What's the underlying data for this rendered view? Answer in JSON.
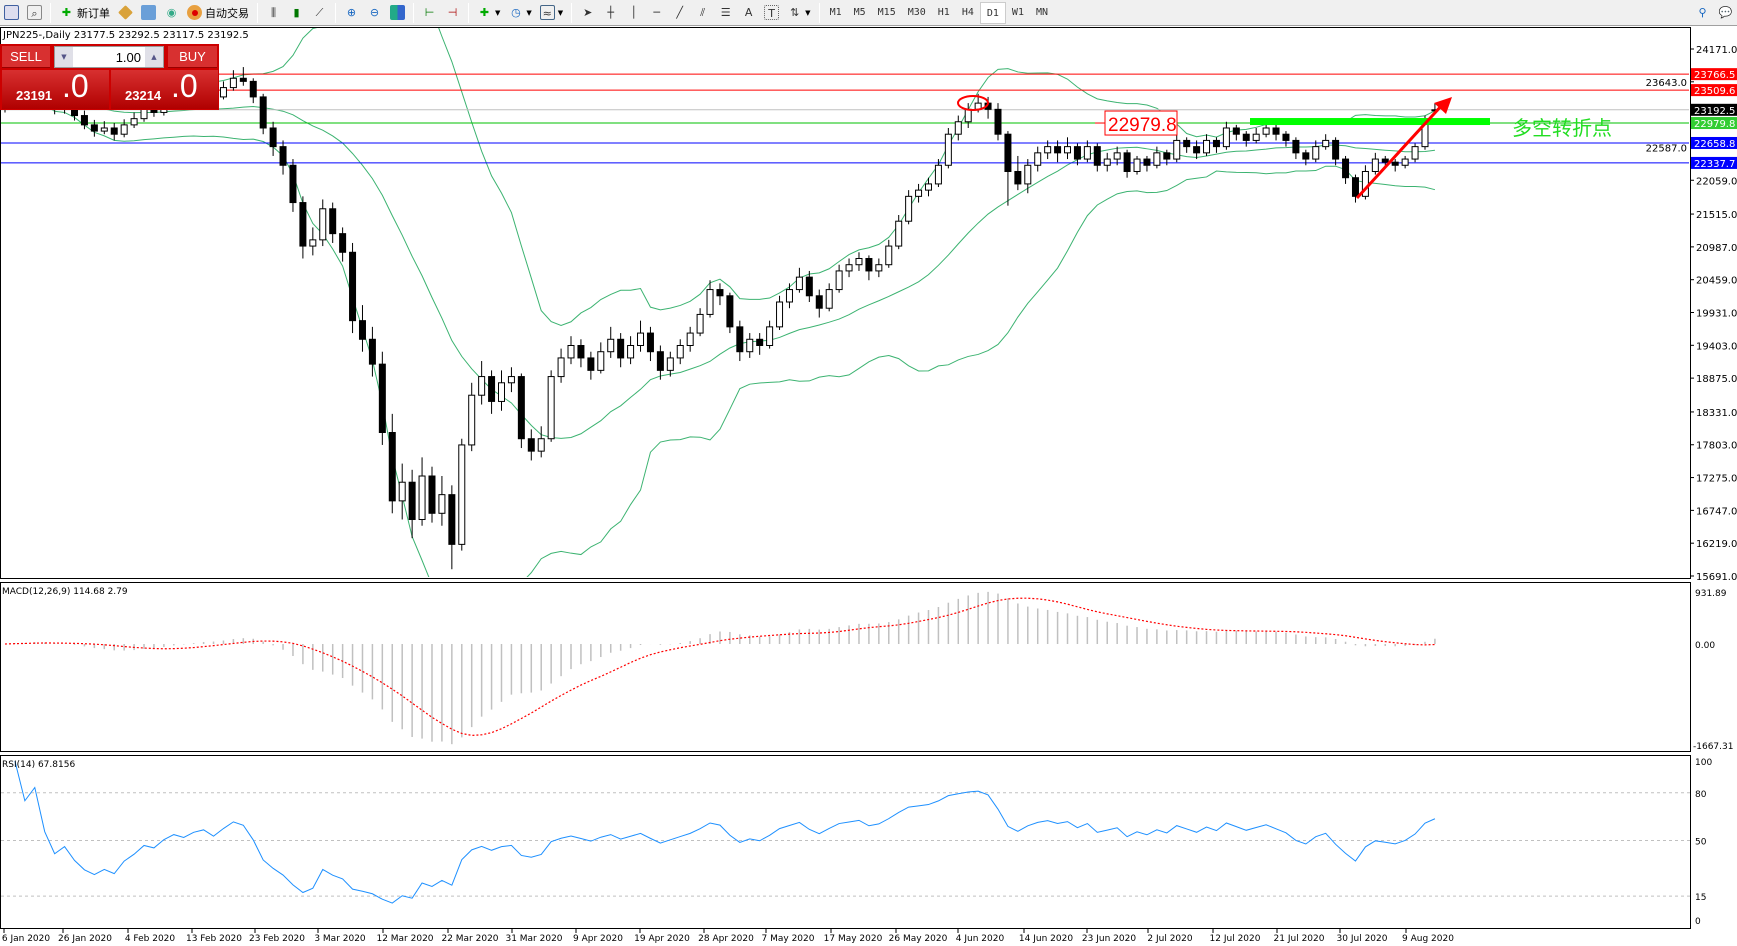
{
  "toolbar": {
    "new_order": "新订单",
    "auto_trading": "自动交易",
    "timeframes": [
      "M1",
      "M5",
      "M15",
      "M30",
      "H1",
      "H4",
      "D1",
      "W1",
      "MN"
    ],
    "selected_timeframe": "D1"
  },
  "chart": {
    "title": "JPN225-,Daily  23177.5 23292.5 23117.5 23192.5",
    "symbol": "JPN225-",
    "period": "Daily",
    "price_ticks": [
      "24171.0",
      "23643.0",
      "22587.0",
      "22059.0",
      "21515.0",
      "20987.0",
      "20459.0",
      "19931.0",
      "19403.0",
      "18875.0",
      "18331.0",
      "17803.0",
      "17275.0",
      "16747.0",
      "16219.0",
      "15691.0"
    ],
    "levels": [
      {
        "price": 23766.5,
        "label": "23766.5",
        "color": "#ff0000"
      },
      {
        "price": 23509.6,
        "label": "23509.6",
        "color": "#ff0000"
      },
      {
        "price": 23192.5,
        "label": "23192.5",
        "color": "#000000",
        "line": "#c0c0c0"
      },
      {
        "price": 22979.8,
        "label": "22979.8",
        "color": "#32cd32",
        "line": "#00c000"
      },
      {
        "price": 22658.8,
        "label": "22658.8",
        "color": "#0000ff"
      },
      {
        "price": 22337.7,
        "label": "22337.7",
        "color": "#0000ff"
      }
    ],
    "annotation_price": "22979.8",
    "annotation_text": "多空转折点",
    "colors": {
      "bands": "#3cb371",
      "up": "#ffffff",
      "down": "#000000",
      "arrow": "#ff0000",
      "green_zone": "#00ff00"
    },
    "ohlc": [
      [
        23200,
        23420,
        23150,
        23300
      ],
      [
        23300,
        23520,
        23250,
        23450
      ],
      [
        23450,
        23560,
        23330,
        23400
      ],
      [
        23400,
        23600,
        23350,
        23500
      ],
      [
        23500,
        23560,
        23280,
        23350
      ],
      [
        23350,
        23420,
        23120,
        23200
      ],
      [
        23200,
        23350,
        23130,
        23250
      ],
      [
        23250,
        23300,
        23020,
        23100
      ],
      [
        23100,
        23180,
        22880,
        22950
      ],
      [
        22950,
        23030,
        22760,
        22850
      ],
      [
        22850,
        23010,
        22800,
        22900
      ],
      [
        22900,
        22980,
        22700,
        22800
      ],
      [
        22800,
        23040,
        22750,
        22950
      ],
      [
        22950,
        23150,
        22900,
        23050
      ],
      [
        23050,
        23280,
        23000,
        23200
      ],
      [
        23200,
        23290,
        23080,
        23150
      ],
      [
        23150,
        23380,
        23100,
        23300
      ],
      [
        23300,
        23490,
        23240,
        23400
      ],
      [
        23400,
        23460,
        23270,
        23350
      ],
      [
        23350,
        23540,
        23300,
        23450
      ],
      [
        23450,
        23610,
        23380,
        23500
      ],
      [
        23500,
        23580,
        23320,
        23400
      ],
      [
        23400,
        23650,
        23360,
        23550
      ],
      [
        23550,
        23830,
        23500,
        23700
      ],
      [
        23700,
        23880,
        23580,
        23650
      ],
      [
        23650,
        23700,
        23300,
        23400
      ],
      [
        23400,
        23450,
        22800,
        22900
      ],
      [
        22900,
        23000,
        22450,
        22600
      ],
      [
        22600,
        22700,
        22150,
        22300
      ],
      [
        22300,
        22400,
        21550,
        21700
      ],
      [
        21700,
        21800,
        20800,
        21000
      ],
      [
        21000,
        21300,
        20850,
        21100
      ],
      [
        21100,
        21750,
        21000,
        21600
      ],
      [
        21600,
        21700,
        21050,
        21200
      ],
      [
        21200,
        21300,
        20750,
        20900
      ],
      [
        20900,
        21050,
        19600,
        19800
      ],
      [
        19800,
        20050,
        19300,
        19500
      ],
      [
        19500,
        19700,
        18900,
        19100
      ],
      [
        19100,
        19300,
        17800,
        18000
      ],
      [
        18000,
        18300,
        16700,
        16900
      ],
      [
        16900,
        17500,
        16600,
        17200
      ],
      [
        17200,
        17400,
        16300,
        16600
      ],
      [
        16600,
        17600,
        16500,
        17300
      ],
      [
        17300,
        17450,
        16550,
        16700
      ],
      [
        16700,
        17300,
        16500,
        17000
      ],
      [
        17000,
        17150,
        15800,
        16200
      ],
      [
        16200,
        17900,
        16100,
        17800
      ],
      [
        17800,
        18800,
        17700,
        18600
      ],
      [
        18600,
        19150,
        18450,
        18900
      ],
      [
        18900,
        19000,
        18300,
        18500
      ],
      [
        18500,
        19000,
        18350,
        18800
      ],
      [
        18800,
        19050,
        18650,
        18900
      ],
      [
        18900,
        18950,
        17750,
        17900
      ],
      [
        17900,
        18050,
        17550,
        17700
      ],
      [
        17700,
        18100,
        17600,
        17900
      ],
      [
        17900,
        19000,
        17850,
        18900
      ],
      [
        18900,
        19350,
        18800,
        19200
      ],
      [
        19200,
        19550,
        19100,
        19400
      ],
      [
        19400,
        19500,
        19050,
        19200
      ],
      [
        19200,
        19300,
        18850,
        19000
      ],
      [
        19000,
        19450,
        18950,
        19300
      ],
      [
        19300,
        19700,
        19200,
        19500
      ],
      [
        19500,
        19600,
        19050,
        19200
      ],
      [
        19200,
        19550,
        19100,
        19400
      ],
      [
        19400,
        19800,
        19300,
        19600
      ],
      [
        19600,
        19700,
        19150,
        19300
      ],
      [
        19300,
        19400,
        18850,
        19000
      ],
      [
        19000,
        19300,
        18900,
        19200
      ],
      [
        19200,
        19500,
        19100,
        19400
      ],
      [
        19400,
        19700,
        19300,
        19600
      ],
      [
        19600,
        20000,
        19550,
        19900
      ],
      [
        19900,
        20450,
        19850,
        20300
      ],
      [
        20300,
        20400,
        20050,
        20200
      ],
      [
        20200,
        20250,
        19600,
        19700
      ],
      [
        19700,
        19800,
        19150,
        19300
      ],
      [
        19300,
        19600,
        19200,
        19500
      ],
      [
        19500,
        19600,
        19250,
        19400
      ],
      [
        19400,
        19800,
        19350,
        19700
      ],
      [
        19700,
        20200,
        19650,
        20100
      ],
      [
        20100,
        20400,
        20000,
        20300
      ],
      [
        20300,
        20650,
        20250,
        20500
      ],
      [
        20500,
        20600,
        20100,
        20200
      ],
      [
        20200,
        20300,
        19850,
        20000
      ],
      [
        20000,
        20400,
        19950,
        20300
      ],
      [
        20300,
        20700,
        20250,
        20600
      ],
      [
        20600,
        20800,
        20500,
        20700
      ],
      [
        20700,
        20900,
        20600,
        20800
      ],
      [
        20800,
        20850,
        20450,
        20600
      ],
      [
        20600,
        20800,
        20500,
        20700
      ],
      [
        20700,
        21100,
        20650,
        21000
      ],
      [
        21000,
        21500,
        20950,
        21400
      ],
      [
        21400,
        21900,
        21350,
        21800
      ],
      [
        21800,
        22000,
        21700,
        21900
      ],
      [
        21900,
        22100,
        21800,
        22000
      ],
      [
        22000,
        22400,
        21950,
        22300
      ],
      [
        22300,
        22900,
        22250,
        22800
      ],
      [
        22800,
        23100,
        22700,
        23000
      ],
      [
        23000,
        23300,
        22900,
        23200
      ],
      [
        23200,
        23450,
        23150,
        23300
      ],
      [
        23300,
        23400,
        23050,
        23200
      ],
      [
        23200,
        23300,
        22700,
        22800
      ],
      [
        22800,
        22850,
        21650,
        22200
      ],
      [
        22200,
        22450,
        21900,
        22000
      ],
      [
        22000,
        22400,
        21850,
        22300
      ],
      [
        22300,
        22600,
        22200,
        22500
      ],
      [
        22500,
        22700,
        22400,
        22600
      ],
      [
        22600,
        22700,
        22350,
        22500
      ],
      [
        22500,
        22750,
        22400,
        22600
      ],
      [
        22600,
        22650,
        22300,
        22400
      ],
      [
        22400,
        22700,
        22350,
        22600
      ],
      [
        22600,
        22650,
        22200,
        22300
      ],
      [
        22300,
        22500,
        22200,
        22400
      ],
      [
        22400,
        22600,
        22300,
        22500
      ],
      [
        22500,
        22550,
        22100,
        22200
      ],
      [
        22200,
        22450,
        22150,
        22400
      ],
      [
        22400,
        22450,
        22200,
        22300
      ],
      [
        22300,
        22600,
        22250,
        22500
      ],
      [
        22500,
        22550,
        22300,
        22400
      ],
      [
        22400,
        22800,
        22350,
        22700
      ],
      [
        22700,
        22750,
        22500,
        22600
      ],
      [
        22600,
        22700,
        22400,
        22500
      ],
      [
        22500,
        22800,
        22450,
        22700
      ],
      [
        22700,
        22750,
        22500,
        22600
      ],
      [
        22600,
        23000,
        22550,
        22900
      ],
      [
        22900,
        22950,
        22700,
        22800
      ],
      [
        22800,
        22850,
        22600,
        22700
      ],
      [
        22700,
        22900,
        22650,
        22800
      ],
      [
        22800,
        23000,
        22750,
        22900
      ],
      [
        22900,
        22950,
        22700,
        22800
      ],
      [
        22800,
        22850,
        22600,
        22700
      ],
      [
        22700,
        22750,
        22400,
        22500
      ],
      [
        22500,
        22550,
        22300,
        22400
      ],
      [
        22400,
        22700,
        22350,
        22600
      ],
      [
        22600,
        22800,
        22550,
        22700
      ],
      [
        22700,
        22750,
        22300,
        22400
      ],
      [
        22400,
        22450,
        22000,
        22100
      ],
      [
        22100,
        22150,
        21700,
        21800
      ],
      [
        21800,
        22300,
        21750,
        22200
      ],
      [
        22200,
        22500,
        22150,
        22400
      ],
      [
        22400,
        22450,
        22250,
        22350
      ],
      [
        22350,
        22400,
        22200,
        22300
      ],
      [
        22300,
        22450,
        22250,
        22400
      ],
      [
        22400,
        22650,
        22350,
        22600
      ],
      [
        22600,
        23100,
        22550,
        23000
      ],
      [
        23177.5,
        23292.5,
        23117.5,
        23192.5
      ]
    ]
  },
  "trade_panel": {
    "sell": "SELL",
    "buy": "BUY",
    "volume": "1.00",
    "bid_small": "23191",
    "bid_big": ".0",
    "ask_small": "23214",
    "ask_big": ".0"
  },
  "macd": {
    "title": "MACD(12,26,9) 114.68 2.79",
    "max_label": "931.89",
    "zero_label": "0.00",
    "min_label": "-1667.31",
    "max": 931.89,
    "min": -1667.31,
    "colors": {
      "histogram": "#c0c0c0",
      "signal": "#ff0000"
    }
  },
  "rsi": {
    "title": "RSI(14) 67.8156",
    "ticks": [
      "100",
      "80",
      "50",
      "15",
      "0"
    ],
    "levels": [
      80,
      50,
      15
    ],
    "color": "#1e90ff"
  },
  "dates": [
    "6 Jan 2020",
    "26 Jan 2020",
    "4 Feb 2020",
    "13 Feb 2020",
    "23 Feb 2020",
    "3 Mar 2020",
    "12 Mar 2020",
    "22 Mar 2020",
    "31 Mar 2020",
    "9 Apr 2020",
    "19 Apr 2020",
    "28 Apr 2020",
    "7 May 2020",
    "17 May 2020",
    "26 May 2020",
    "4 Jun 2020",
    "14 Jun 2020",
    "23 Jun 2020",
    "2 Jul 2020",
    "12 Jul 2020",
    "21 Jul 2020",
    "30 Jul 2020",
    "9 Aug 2020"
  ]
}
